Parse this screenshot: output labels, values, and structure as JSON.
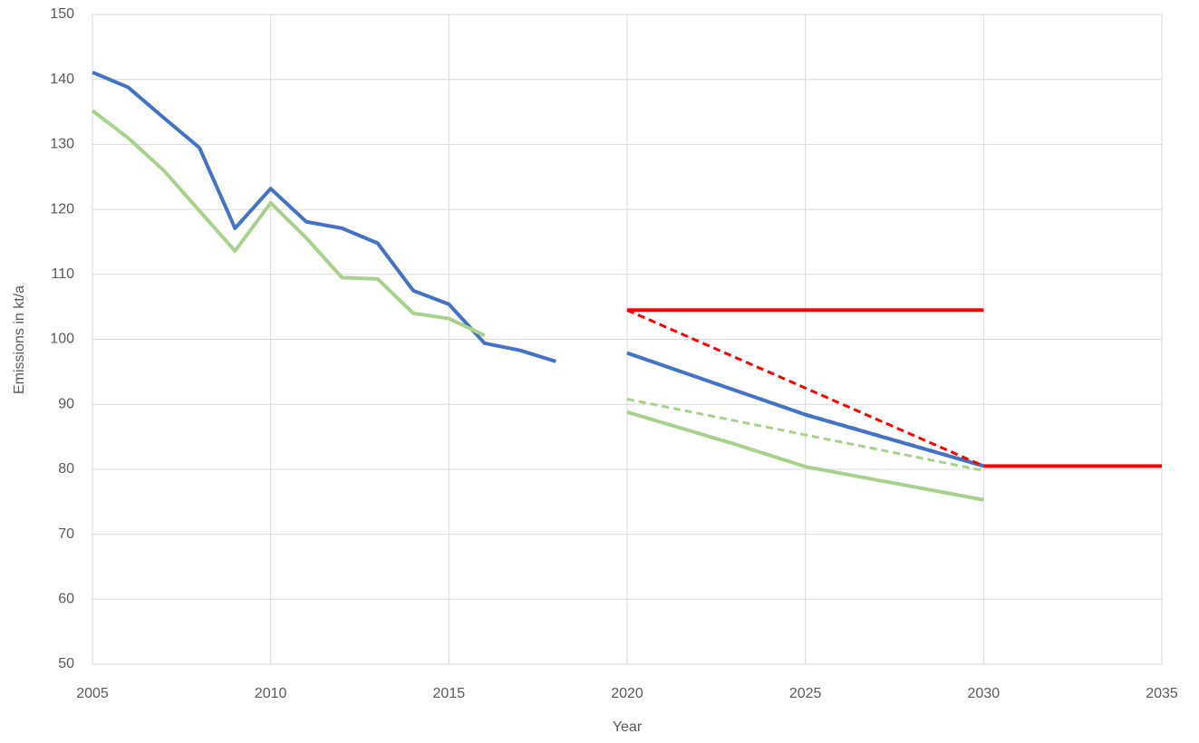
{
  "chart_data": {
    "type": "line",
    "x_label": "Year",
    "y_label": "Emissions in kt/a",
    "xlim": [
      2005,
      2035
    ],
    "xticks": [
      2005,
      2010,
      2015,
      2020,
      2025,
      2030,
      2035
    ],
    "ylim": [
      50,
      150
    ],
    "yticks": [
      50,
      60,
      70,
      80,
      90,
      100,
      110,
      120,
      130,
      140,
      150
    ],
    "grid": true,
    "series": [
      {
        "color": "#4472c4",
        "dash": false,
        "x": [
          2005,
          2006,
          2007,
          2008,
          2009,
          2010,
          2011,
          2012,
          2013,
          2014,
          2015,
          2016,
          2017,
          2018
        ],
        "values": [
          141.1,
          138.8,
          134.1,
          129.5,
          117.1,
          123.2,
          118.1,
          117.1,
          114.8,
          107.5,
          105.4,
          99.4,
          98.3,
          96.6
        ]
      },
      {
        "color": "#a9d18e",
        "dash": false,
        "x": [
          2005,
          2006,
          2007,
          2008,
          2009,
          2010,
          2011,
          2012,
          2013,
          2014,
          2015,
          2016
        ],
        "values": [
          135.2,
          131.0,
          126.0,
          119.8,
          113.6,
          121.0,
          115.6,
          109.5,
          109.3,
          104.0,
          103.2,
          100.6
        ]
      },
      {
        "color": "#4472c4",
        "dash": false,
        "x": [
          2020,
          2025,
          2030
        ],
        "values": [
          97.9,
          88.4,
          80.5
        ]
      },
      {
        "color": "#4472c4",
        "dash": true,
        "x": [
          2020,
          2025,
          2030
        ],
        "values": [
          97.9,
          88.5,
          80.6
        ]
      },
      {
        "color": "#a9d18e",
        "dash": false,
        "x": [
          2020,
          2023,
          2025,
          2030
        ],
        "values": [
          88.8,
          83.9,
          80.4,
          75.3
        ]
      },
      {
        "color": "#a9d18e",
        "dash": true,
        "x": [
          2020,
          2030
        ],
        "values": [
          90.8,
          79.8
        ]
      },
      {
        "color": "#ff0000",
        "dash": false,
        "x": [
          2020,
          2030
        ],
        "values": [
          104.5,
          104.5
        ]
      },
      {
        "color": "#ff0000",
        "dash": false,
        "x": [
          2030,
          2035
        ],
        "values": [
          80.5,
          80.5
        ]
      },
      {
        "color": "#ff0000",
        "dash": true,
        "x": [
          2020,
          2030
        ],
        "values": [
          104.5,
          80.5
        ]
      }
    ]
  }
}
